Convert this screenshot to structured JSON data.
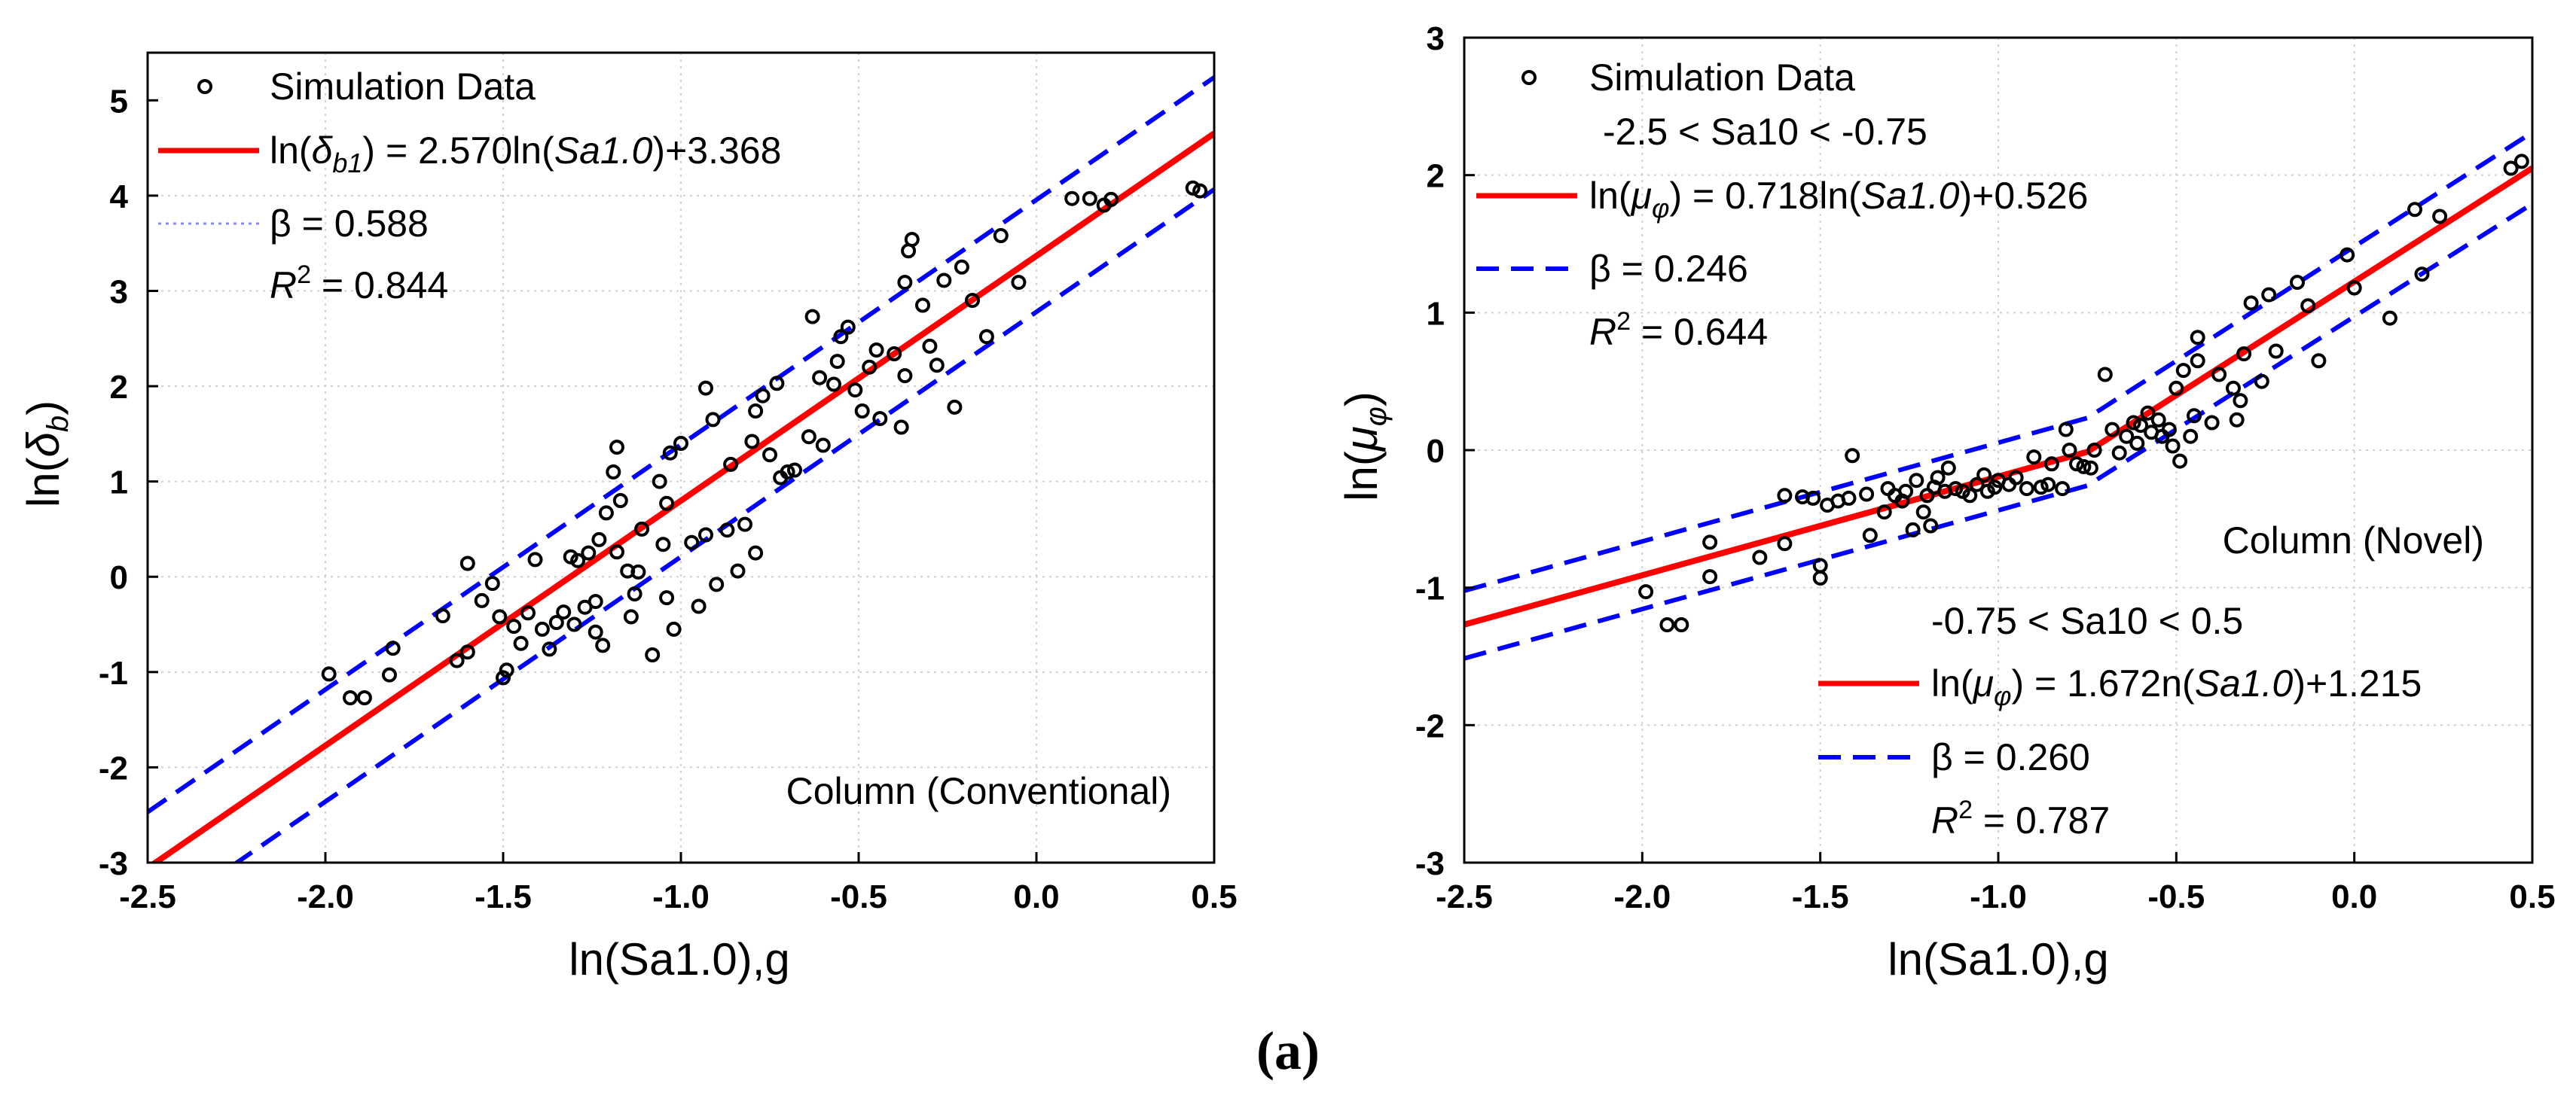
{
  "caption": "(a)",
  "chart_data": [
    {
      "type": "scatter",
      "title": "",
      "xlabel": "ln(Sa1.0),g",
      "ylabel_prefix": "ln(",
      "ylabel_symbol": "δ",
      "ylabel_sub": "b",
      "ylabel_suffix": ")",
      "xlim": [
        -2.5,
        0.5
      ],
      "ylim": [
        -3,
        5.5
      ],
      "xticks": [
        -2.5,
        -2.0,
        -1.5,
        -1.0,
        -0.5,
        0.0,
        0.5
      ],
      "xtick_labels": [
        "-2.5",
        "-2.0",
        "-1.5",
        "-1.0",
        "-0.5",
        "0.0",
        "0.5"
      ],
      "yticks": [
        -3,
        -2,
        -1,
        0,
        1,
        2,
        3,
        4,
        5
      ],
      "ytick_labels": [
        "-3",
        "-2",
        "-1",
        "0",
        "1",
        "2",
        "3",
        "4",
        "5"
      ],
      "grid": true,
      "legend_location": "top-left",
      "legend": {
        "data_label": "Simulation Data",
        "fit_prefix": "ln(",
        "fit_symbol": "δ",
        "fit_sub": "b1",
        "fit_mid": ") = 2.570ln(",
        "fit_arg": "Sa1.0",
        "fit_suffix": ")+3.368",
        "beta_label": "β = 0.588",
        "r2_label": "R",
        "r2_sup": "2",
        "r2_value": " = 0.844"
      },
      "annotation": "Column (Conventional)",
      "colors": {
        "fit": "#ff0000",
        "band": "#0000ff",
        "points": "#000000"
      },
      "fit": {
        "slope": 2.57,
        "intercept": 3.368,
        "x_range": [
          -2.5,
          0.5
        ]
      },
      "band": {
        "offset": 0.588,
        "x_range": [
          -2.5,
          0.5
        ]
      },
      "points": [
        [
          -1.99,
          -1.02
        ],
        [
          -1.93,
          -1.27
        ],
        [
          -1.89,
          -1.27
        ],
        [
          -1.82,
          -1.03
        ],
        [
          -1.81,
          -0.75
        ],
        [
          -1.67,
          -0.41
        ],
        [
          -1.63,
          -0.88
        ],
        [
          -1.6,
          -0.79
        ],
        [
          -1.6,
          0.14
        ],
        [
          -1.56,
          -0.25
        ],
        [
          -1.53,
          -0.07
        ],
        [
          -1.51,
          -0.42
        ],
        [
          -1.5,
          -1.06
        ],
        [
          -1.49,
          -0.98
        ],
        [
          -1.47,
          -0.52
        ],
        [
          -1.45,
          -0.7
        ],
        [
          -1.43,
          -0.38
        ],
        [
          -1.41,
          0.18
        ],
        [
          -1.39,
          -0.55
        ],
        [
          -1.37,
          -0.76
        ],
        [
          -1.35,
          -0.48
        ],
        [
          -1.33,
          -0.37
        ],
        [
          -1.31,
          0.21
        ],
        [
          -1.3,
          -0.5
        ],
        [
          -1.29,
          0.17
        ],
        [
          -1.27,
          -0.32
        ],
        [
          -1.26,
          0.25
        ],
        [
          -1.24,
          -0.58
        ],
        [
          -1.24,
          -0.26
        ],
        [
          -1.23,
          0.39
        ],
        [
          -1.22,
          -0.72
        ],
        [
          -1.21,
          0.67
        ],
        [
          -1.19,
          1.1
        ],
        [
          -1.18,
          1.36
        ],
        [
          -1.18,
          0.26
        ],
        [
          -1.17,
          0.8
        ],
        [
          -1.15,
          0.06
        ],
        [
          -1.14,
          -0.42
        ],
        [
          -1.13,
          -0.18
        ],
        [
          -1.12,
          0.05
        ],
        [
          -1.11,
          0.5
        ],
        [
          -1.08,
          -0.82
        ],
        [
          -1.06,
          1.0
        ],
        [
          -1.05,
          0.34
        ],
        [
          -1.04,
          0.77
        ],
        [
          -1.04,
          -0.22
        ],
        [
          -1.03,
          1.3
        ],
        [
          -1.02,
          -0.55
        ],
        [
          -1.0,
          1.4
        ],
        [
          -0.97,
          0.36
        ],
        [
          -0.95,
          -0.31
        ],
        [
          -0.93,
          1.98
        ],
        [
          -0.93,
          0.44
        ],
        [
          -0.91,
          1.65
        ],
        [
          -0.9,
          -0.08
        ],
        [
          -0.87,
          0.49
        ],
        [
          -0.86,
          1.18
        ],
        [
          -0.84,
          0.06
        ],
        [
          -0.82,
          0.55
        ],
        [
          -0.8,
          1.42
        ],
        [
          -0.79,
          1.74
        ],
        [
          -0.79,
          0.25
        ],
        [
          -0.77,
          1.9
        ],
        [
          -0.75,
          1.28
        ],
        [
          -0.73,
          2.03
        ],
        [
          -0.72,
          1.04
        ],
        [
          -0.7,
          1.1
        ],
        [
          -0.68,
          1.12
        ],
        [
          -0.64,
          1.47
        ],
        [
          -0.63,
          2.73
        ],
        [
          -0.61,
          2.09
        ],
        [
          -0.6,
          1.38
        ],
        [
          -0.57,
          2.02
        ],
        [
          -0.56,
          2.26
        ],
        [
          -0.55,
          2.52
        ],
        [
          -0.53,
          2.62
        ],
        [
          -0.51,
          1.96
        ],
        [
          -0.49,
          1.74
        ],
        [
          -0.47,
          2.2
        ],
        [
          -0.45,
          2.38
        ],
        [
          -0.44,
          1.66
        ],
        [
          -0.4,
          2.34
        ],
        [
          -0.38,
          1.57
        ],
        [
          -0.37,
          2.11
        ],
        [
          -0.37,
          3.09
        ],
        [
          -0.36,
          3.42
        ],
        [
          -0.35,
          3.54
        ],
        [
          -0.32,
          2.85
        ],
        [
          -0.3,
          2.42
        ],
        [
          -0.28,
          2.22
        ],
        [
          -0.26,
          3.11
        ],
        [
          -0.23,
          1.78
        ],
        [
          -0.21,
          3.25
        ],
        [
          -0.18,
          2.9
        ],
        [
          -0.14,
          2.52
        ],
        [
          -0.1,
          3.58
        ],
        [
          -0.05,
          3.09
        ],
        [
          0.1,
          3.97
        ],
        [
          0.15,
          3.97
        ],
        [
          0.19,
          3.9
        ],
        [
          0.21,
          3.96
        ],
        [
          0.44,
          4.08
        ],
        [
          0.46,
          4.05
        ]
      ]
    },
    {
      "type": "scatter",
      "title": "",
      "xlabel": "ln(Sa1.0),g",
      "ylabel_prefix": "ln(",
      "ylabel_symbol": "μ",
      "ylabel_sub": "φ",
      "ylabel_suffix": ")",
      "xlim": [
        -2.5,
        0.5
      ],
      "ylim": [
        -3,
        3
      ],
      "xticks": [
        -2.5,
        -2.0,
        -1.5,
        -1.0,
        -0.5,
        0.0,
        0.5
      ],
      "xtick_labels": [
        "-2.5",
        "-2.0",
        "-1.5",
        "-1.0",
        "-0.5",
        "0.0",
        "0.5"
      ],
      "yticks": [
        -3,
        -2,
        -1,
        0,
        1,
        2,
        3
      ],
      "ytick_labels": [
        "-3",
        "-2",
        "-1",
        "0",
        "1",
        "2",
        "3"
      ],
      "grid": true,
      "legend_location": "top-left and bottom-right",
      "legend": {
        "data_label": "Simulation Data",
        "range1": "-2.5 < Sa10 < -0.75",
        "fit1_prefix": "ln(",
        "fit1_symbol": "μ",
        "fit1_sub": "φ",
        "fit1_mid": ") = 0.718ln(",
        "fit1_arg": "Sa1.0",
        "fit1_suffix": ")+0.526",
        "beta1_label": "β = 0.246",
        "r2_1_label": "R",
        "r2_1_sup": "2",
        "r2_1_value": " = 0.644",
        "range2": "-0.75 < Sa10 < 0.5",
        "fit2_prefix": "ln(",
        "fit2_symbol": "μ",
        "fit2_sub": "φ",
        "fit2_mid": ") = 1.672n(",
        "fit2_arg": "Sa1.0",
        "fit2_suffix": ")+1.215",
        "beta2_label": "β = 0.260",
        "r2_2_label": "R",
        "r2_2_sup": "2",
        "r2_2_value": " = 0.787"
      },
      "annotation": "Column (Novel)",
      "colors": {
        "fit": "#ff0000",
        "band": "#0000ff",
        "points": "#000000"
      },
      "segments": [
        {
          "slope": 0.718,
          "intercept": 0.526,
          "x_range": [
            -2.5,
            -0.75
          ],
          "beta": 0.246
        },
        {
          "slope": 1.672,
          "intercept": 1.215,
          "x_range": [
            -0.75,
            0.5
          ],
          "beta": 0.26
        }
      ],
      "points": [
        [
          -1.99,
          -1.03
        ],
        [
          -1.93,
          -1.27
        ],
        [
          -1.89,
          -1.27
        ],
        [
          -1.81,
          -0.67
        ],
        [
          -1.81,
          -0.92
        ],
        [
          -1.67,
          -0.78
        ],
        [
          -1.6,
          -0.68
        ],
        [
          -1.6,
          -0.33
        ],
        [
          -1.55,
          -0.34
        ],
        [
          -1.52,
          -0.35
        ],
        [
          -1.5,
          -0.84
        ],
        [
          -1.5,
          -0.93
        ],
        [
          -1.48,
          -0.4
        ],
        [
          -1.45,
          -0.37
        ],
        [
          -1.42,
          -0.35
        ],
        [
          -1.41,
          -0.04
        ],
        [
          -1.37,
          -0.32
        ],
        [
          -1.36,
          -0.62
        ],
        [
          -1.32,
          -0.45
        ],
        [
          -1.31,
          -0.28
        ],
        [
          -1.29,
          -0.33
        ],
        [
          -1.27,
          -0.37
        ],
        [
          -1.26,
          -0.3
        ],
        [
          -1.24,
          -0.58
        ],
        [
          -1.23,
          -0.22
        ],
        [
          -1.21,
          -0.45
        ],
        [
          -1.2,
          -0.33
        ],
        [
          -1.19,
          -0.55
        ],
        [
          -1.18,
          -0.27
        ],
        [
          -1.17,
          -0.2
        ],
        [
          -1.15,
          -0.3
        ],
        [
          -1.14,
          -0.13
        ],
        [
          -1.12,
          -0.28
        ],
        [
          -1.1,
          -0.3
        ],
        [
          -1.08,
          -0.33
        ],
        [
          -1.06,
          -0.25
        ],
        [
          -1.04,
          -0.18
        ],
        [
          -1.03,
          -0.3
        ],
        [
          -1.01,
          -0.27
        ],
        [
          -1.0,
          -0.22
        ],
        [
          -0.97,
          -0.25
        ],
        [
          -0.95,
          -0.2
        ],
        [
          -0.92,
          -0.28
        ],
        [
          -0.9,
          -0.05
        ],
        [
          -0.88,
          -0.27
        ],
        [
          -0.86,
          -0.25
        ],
        [
          -0.85,
          -0.1
        ],
        [
          -0.82,
          -0.28
        ],
        [
          -0.81,
          0.15
        ],
        [
          -0.8,
          0.0
        ],
        [
          -0.78,
          -0.1
        ],
        [
          -0.76,
          -0.12
        ],
        [
          -0.74,
          -0.13
        ],
        [
          -0.73,
          0.0
        ],
        [
          -0.7,
          0.55
        ],
        [
          -0.68,
          0.15
        ],
        [
          -0.66,
          -0.02
        ],
        [
          -0.64,
          0.1
        ],
        [
          -0.62,
          0.2
        ],
        [
          -0.61,
          0.05
        ],
        [
          -0.6,
          0.18
        ],
        [
          -0.58,
          0.27
        ],
        [
          -0.57,
          0.13
        ],
        [
          -0.55,
          0.22
        ],
        [
          -0.54,
          0.1
        ],
        [
          -0.52,
          0.15
        ],
        [
          -0.51,
          0.03
        ],
        [
          -0.5,
          0.45
        ],
        [
          -0.49,
          -0.08
        ],
        [
          -0.48,
          0.58
        ],
        [
          -0.46,
          0.1
        ],
        [
          -0.45,
          0.25
        ],
        [
          -0.44,
          0.65
        ],
        [
          -0.44,
          0.82
        ],
        [
          -0.4,
          0.2
        ],
        [
          -0.38,
          0.55
        ],
        [
          -0.34,
          0.45
        ],
        [
          -0.33,
          0.22
        ],
        [
          -0.32,
          0.36
        ],
        [
          -0.31,
          0.7
        ],
        [
          -0.29,
          1.07
        ],
        [
          -0.26,
          0.5
        ],
        [
          -0.24,
          1.13
        ],
        [
          -0.22,
          0.72
        ],
        [
          -0.16,
          1.22
        ],
        [
          -0.13,
          1.05
        ],
        [
          -0.1,
          0.65
        ],
        [
          -0.02,
          1.42
        ],
        [
          0.0,
          1.18
        ],
        [
          0.1,
          0.96
        ],
        [
          0.17,
          1.75
        ],
        [
          0.19,
          1.28
        ],
        [
          0.24,
          1.7
        ],
        [
          0.44,
          2.05
        ],
        [
          0.47,
          2.1
        ]
      ]
    }
  ]
}
